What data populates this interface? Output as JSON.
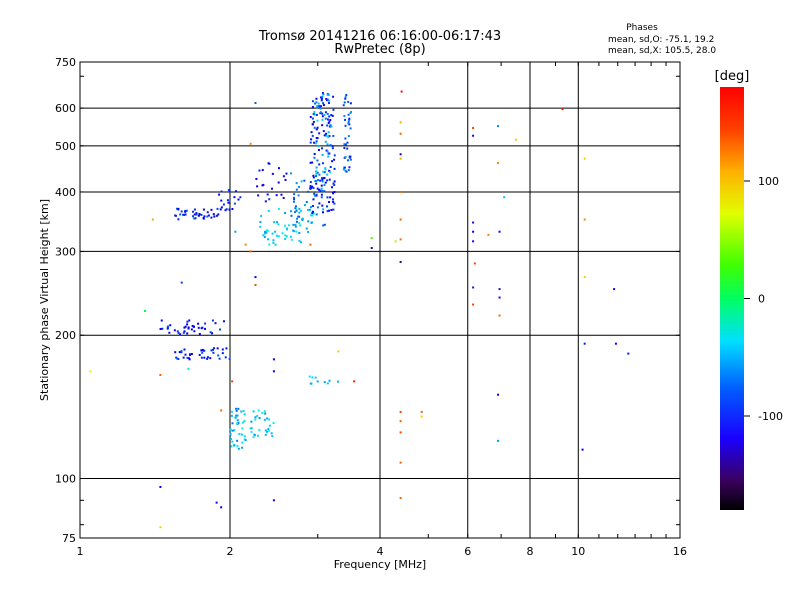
{
  "chart_data": {
    "type": "scatter",
    "title": "Tromsø 20141216 06:16:00-06:17:43",
    "subtitle": "RwPretec (8p)",
    "xlabel": "Frequency [MHz]",
    "ylabel": "Stationary phase Virtual Height [km]",
    "x_scale": "log",
    "y_scale": "log",
    "xlim": [
      1,
      16
    ],
    "ylim": [
      75,
      750
    ],
    "x_ticks": [
      1,
      2,
      4,
      6,
      8,
      10,
      16
    ],
    "y_ticks": [
      75,
      100,
      200,
      300,
      400,
      500,
      600,
      750
    ],
    "grid": true,
    "phase_header": "Phases",
    "phase_lines": [
      "mean, sd,O: -75.1, 19.2",
      "mean, sd,X: 105.5, 28.0"
    ],
    "colorbar": {
      "label": "[deg]",
      "ticks": [
        100,
        0,
        -100
      ],
      "range": [
        -180,
        180
      ]
    },
    "traces": [
      {
        "x": [
          1.55,
          1.9
        ],
        "y": [
          350,
          370
        ],
        "phase": -100,
        "n": 40
      },
      {
        "x": [
          1.9,
          2.1
        ],
        "y": [
          365,
          405
        ],
        "phase": -105,
        "n": 20
      },
      {
        "x": [
          2.25,
          2.6
        ],
        "y": [
          380,
          470
        ],
        "phase": -110,
        "n": 22
      },
      {
        "x": [
          2.3,
          2.95
        ],
        "y": [
          310,
          370
        ],
        "phase": -45,
        "n": 60
      },
      {
        "x": [
          2.65,
          3.1
        ],
        "y": [
          340,
          440
        ],
        "phase": -70,
        "n": 45
      },
      {
        "x": [
          2.9,
          3.25
        ],
        "y": [
          360,
          650
        ],
        "phase": -105,
        "n": 120
      },
      {
        "x": [
          2.95,
          3.2
        ],
        "y": [
          400,
          650
        ],
        "phase": -60,
        "n": 50
      },
      {
        "x": [
          3.38,
          3.5
        ],
        "y": [
          440,
          650
        ],
        "phase": -80,
        "n": 40
      },
      {
        "x": [
          1.45,
          1.95
        ],
        "y": [
          200,
          215
        ],
        "phase": -105,
        "n": 40
      },
      {
        "x": [
          1.55,
          2.0
        ],
        "y": [
          178,
          188
        ],
        "phase": -100,
        "n": 40
      },
      {
        "x": [
          2.0,
          2.15
        ],
        "y": [
          115,
          142
        ],
        "phase": -55,
        "n": 40
      },
      {
        "x": [
          2.2,
          2.45
        ],
        "y": [
          122,
          140
        ],
        "phase": -50,
        "n": 30
      },
      {
        "x": [
          2.85,
          3.3
        ],
        "y": [
          158,
          164
        ],
        "phase": -55,
        "n": 10
      }
    ],
    "points": [
      {
        "x": 2.25,
        "y": 615,
        "phase": -80
      },
      {
        "x": 2.2,
        "y": 505,
        "phase": 140
      },
      {
        "x": 2.15,
        "y": 310,
        "phase": 140
      },
      {
        "x": 2.05,
        "y": 330,
        "phase": -60
      },
      {
        "x": 2.25,
        "y": 265,
        "phase": -110
      },
      {
        "x": 2.25,
        "y": 255,
        "phase": 160
      },
      {
        "x": 2.2,
        "y": 300,
        "phase": 150
      },
      {
        "x": 2.9,
        "y": 310,
        "phase": 150
      },
      {
        "x": 1.4,
        "y": 350,
        "phase": 130
      },
      {
        "x": 1.05,
        "y": 168,
        "phase": 110
      },
      {
        "x": 1.35,
        "y": 225,
        "phase": 20
      },
      {
        "x": 1.6,
        "y": 258,
        "phase": -90
      },
      {
        "x": 1.45,
        "y": 165,
        "phase": 150
      },
      {
        "x": 1.65,
        "y": 170,
        "phase": -20
      },
      {
        "x": 2.02,
        "y": 160,
        "phase": 160
      },
      {
        "x": 2.45,
        "y": 178,
        "phase": -110
      },
      {
        "x": 2.45,
        "y": 168,
        "phase": -110
      },
      {
        "x": 3.3,
        "y": 185,
        "phase": 120
      },
      {
        "x": 3.55,
        "y": 160,
        "phase": 170
      },
      {
        "x": 1.92,
        "y": 139,
        "phase": 150
      },
      {
        "x": 1.45,
        "y": 96,
        "phase": -110
      },
      {
        "x": 1.45,
        "y": 79,
        "phase": 120
      },
      {
        "x": 1.88,
        "y": 89,
        "phase": -110
      },
      {
        "x": 1.92,
        "y": 87,
        "phase": -110
      },
      {
        "x": 2.45,
        "y": 90,
        "phase": -110
      },
      {
        "x": 3.85,
        "y": 320,
        "phase": 60
      },
      {
        "x": 3.85,
        "y": 305,
        "phase": -160
      },
      {
        "x": 4.42,
        "y": 650,
        "phase": 175
      },
      {
        "x": 4.4,
        "y": 560,
        "phase": 130
      },
      {
        "x": 4.4,
        "y": 530,
        "phase": 150
      },
      {
        "x": 4.4,
        "y": 480,
        "phase": -170
      },
      {
        "x": 4.4,
        "y": 470,
        "phase": 130
      },
      {
        "x": 4.4,
        "y": 400,
        "phase": 150
      },
      {
        "x": 4.4,
        "y": 350,
        "phase": 150
      },
      {
        "x": 4.3,
        "y": 315,
        "phase": 90
      },
      {
        "x": 4.4,
        "y": 318,
        "phase": 150
      },
      {
        "x": 4.4,
        "y": 285,
        "phase": -170
      },
      {
        "x": 4.4,
        "y": 138,
        "phase": 160
      },
      {
        "x": 4.4,
        "y": 132,
        "phase": 150
      },
      {
        "x": 4.4,
        "y": 125,
        "phase": 160
      },
      {
        "x": 4.4,
        "y": 108,
        "phase": 150
      },
      {
        "x": 4.4,
        "y": 91,
        "phase": 150
      },
      {
        "x": 4.85,
        "y": 138,
        "phase": 150
      },
      {
        "x": 4.85,
        "y": 135,
        "phase": 120
      },
      {
        "x": 6.15,
        "y": 545,
        "phase": 160
      },
      {
        "x": 6.15,
        "y": 525,
        "phase": -150
      },
      {
        "x": 6.15,
        "y": 345,
        "phase": -150
      },
      {
        "x": 6.15,
        "y": 330,
        "phase": -110
      },
      {
        "x": 6.15,
        "y": 315,
        "phase": -130
      },
      {
        "x": 6.2,
        "y": 283,
        "phase": 160
      },
      {
        "x": 6.15,
        "y": 252,
        "phase": -100
      },
      {
        "x": 6.15,
        "y": 232,
        "phase": 160
      },
      {
        "x": 6.6,
        "y": 325,
        "phase": 140
      },
      {
        "x": 6.9,
        "y": 550,
        "phase": -70
      },
      {
        "x": 6.9,
        "y": 460,
        "phase": 140
      },
      {
        "x": 6.95,
        "y": 330,
        "phase": -120
      },
      {
        "x": 6.95,
        "y": 250,
        "phase": -150
      },
      {
        "x": 6.95,
        "y": 240,
        "phase": -120
      },
      {
        "x": 6.95,
        "y": 220,
        "phase": 150
      },
      {
        "x": 6.9,
        "y": 150,
        "phase": -130
      },
      {
        "x": 6.9,
        "y": 120,
        "phase": -60
      },
      {
        "x": 7.1,
        "y": 390,
        "phase": -50
      },
      {
        "x": 7.5,
        "y": 515,
        "phase": 120
      },
      {
        "x": 9.3,
        "y": 597,
        "phase": 170
      },
      {
        "x": 10.3,
        "y": 470,
        "phase": 120
      },
      {
        "x": 10.3,
        "y": 350,
        "phase": 140
      },
      {
        "x": 10.3,
        "y": 265,
        "phase": 120
      },
      {
        "x": 10.3,
        "y": 192,
        "phase": -100
      },
      {
        "x": 10.2,
        "y": 115,
        "phase": -110
      },
      {
        "x": 11.8,
        "y": 250,
        "phase": -120
      },
      {
        "x": 11.9,
        "y": 192,
        "phase": -110
      },
      {
        "x": 12.6,
        "y": 183,
        "phase": -100
      }
    ]
  }
}
